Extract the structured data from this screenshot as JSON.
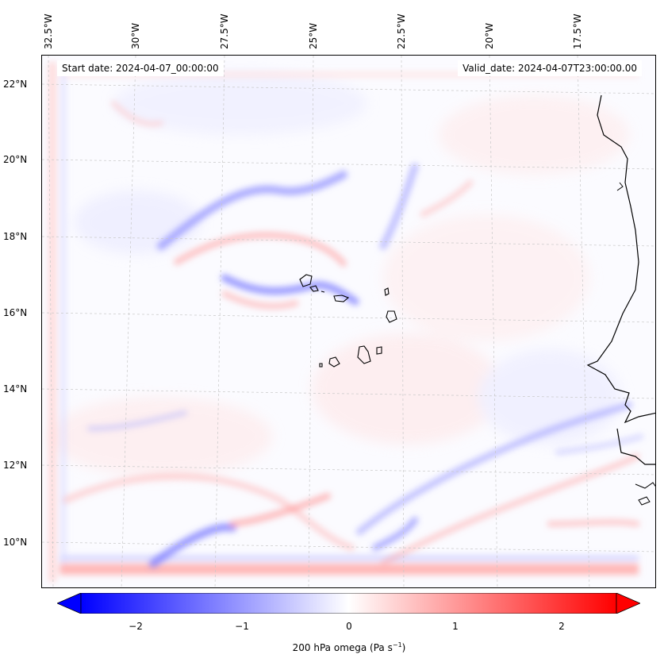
{
  "map": {
    "start_date": "Start date: 2024-04-07_00:00:00",
    "valid_date": "Valid_date: 2024-04-07T23:00:00.00",
    "lon_labels": [
      "32.5°W",
      "30°W",
      "27.5°W",
      "25°W",
      "22.5°W",
      "20°W",
      "17.5°W"
    ],
    "lat_labels": [
      "22°N",
      "20°N",
      "18°N",
      "16°N",
      "14°N",
      "12°N",
      "10°N"
    ],
    "variable": "200 hPa omega",
    "units": "Pa s",
    "units_exponent": "−1",
    "colormap": [
      "#0000ff",
      "#ffffff",
      "#ff0000"
    ],
    "coastline_color": "#000000"
  },
  "colorbar": {
    "ticks": [
      "−2",
      "−1",
      "0",
      "1",
      "2"
    ],
    "range": [
      -2.75,
      2.75
    ],
    "tick_values": [
      -2,
      -1,
      0,
      1,
      2
    ]
  }
}
